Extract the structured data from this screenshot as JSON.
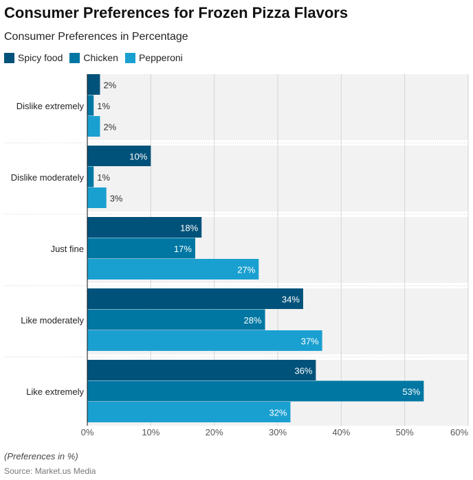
{
  "title": "Consumer Preferences for Frozen Pizza Flavors",
  "subtitle": "Consumer Preferences in Percentage",
  "note": "(Preferences in %)",
  "source": "Source: Market.us Media",
  "chart_data": {
    "type": "bar",
    "orientation": "horizontal",
    "categories": [
      "Dislike extremely",
      "Dislike moderately",
      "Just fine",
      "Like moderately",
      "Like extremely"
    ],
    "series": [
      {
        "name": "Spicy food",
        "color": "#01527a",
        "values": [
          2,
          10,
          18,
          34,
          36
        ]
      },
      {
        "name": "Chicken",
        "color": "#0077a3",
        "values": [
          1,
          1,
          17,
          28,
          53
        ]
      },
      {
        "name": "Pepperoni",
        "color": "#1aa0d0",
        "values": [
          2,
          3,
          27,
          37,
          32
        ]
      }
    ],
    "xlim": [
      0,
      60
    ],
    "xticks": [
      "0%",
      "10%",
      "20%",
      "30%",
      "40%",
      "50%",
      "60%"
    ],
    "value_suffix": "%",
    "grid": true,
    "legend": "top-left"
  }
}
